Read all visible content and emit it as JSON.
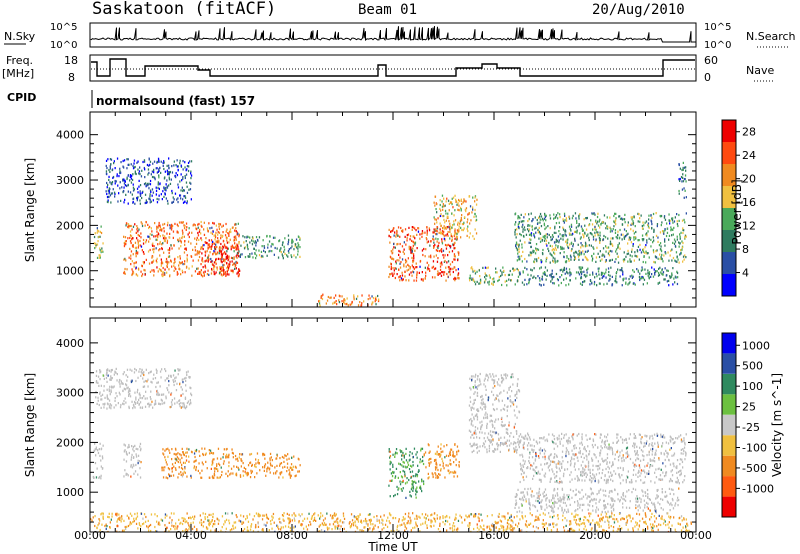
{
  "header": {
    "station": "Saskatoon (fitACF)",
    "beam": "Beam 01",
    "date": "20/Aug/2010"
  },
  "top_panels": {
    "nsky_label": "N.Sky",
    "nsky_ticks": [
      "10^5",
      "10^0"
    ],
    "nsearch_label": "N.Search",
    "nsearch_ticks": [
      "10^5",
      "10^0"
    ],
    "freq_label_1": "Freq.",
    "freq_label_2": "[MHz]",
    "freq_ticks": [
      "18",
      "8"
    ],
    "nave_label": "Nave",
    "nave_ticks": [
      "60",
      "0"
    ],
    "cpid_label": "CPID",
    "cpid_text": "normalsound (fast) 157"
  },
  "colors": {
    "power_scale": [
      "#0000ff",
      "#2a4fa5",
      "#2f7b5f",
      "#4aa95a",
      "#f0c040",
      "#f08a20",
      "#ff4a10",
      "#ee0000"
    ],
    "velocity_scale": [
      "#ee0000",
      "#ff5a10",
      "#f08a20",
      "#f0c040",
      "#c8c8c8",
      "#6cc040",
      "#2f8a5f",
      "#2a4fa5",
      "#0000ee"
    ],
    "ground_scatter": "#bebebe"
  },
  "chart_data": [
    {
      "type": "heatmap",
      "name": "power-panel",
      "xlabel": "",
      "ylabel": "Slant Range [km]",
      "yticks": [
        "1000",
        "2000",
        "3000",
        "4000"
      ],
      "ylim": [
        200,
        4500
      ],
      "xlim": [
        0,
        24
      ],
      "colorbar_label": "Power [dB]",
      "colorbar_ticks": [
        "4",
        "8",
        "12",
        "16",
        "20",
        "24",
        "28"
      ],
      "colorbar_range": [
        0,
        30
      ],
      "regions": [
        {
          "t": [
            0.1,
            0.5
          ],
          "r": [
            1300,
            2000
          ],
          "v": 14
        },
        {
          "t": [
            1.3,
            5.9
          ],
          "r": [
            900,
            2100
          ],
          "v": 22
        },
        {
          "t": [
            4.4,
            5.9
          ],
          "r": [
            900,
            1700
          ],
          "v": 27
        },
        {
          "t": [
            5.8,
            8.3
          ],
          "r": [
            1300,
            1800
          ],
          "v": 11
        },
        {
          "t": [
            0.6,
            4.0
          ],
          "r": [
            2500,
            3500
          ],
          "v": 6
        },
        {
          "t": [
            11.8,
            14.6
          ],
          "r": [
            800,
            2000
          ],
          "v": 24
        },
        {
          "t": [
            13.6,
            15.3
          ],
          "r": [
            1700,
            2700
          ],
          "v": 18
        },
        {
          "t": [
            15.0,
            17.0
          ],
          "r": [
            700,
            1100
          ],
          "v": 13
        },
        {
          "t": [
            16.8,
            23.6
          ],
          "r": [
            1200,
            2300
          ],
          "v": 12
        },
        {
          "t": [
            17.0,
            23.3
          ],
          "r": [
            700,
            1100
          ],
          "v": 10
        },
        {
          "t": [
            9.0,
            11.5
          ],
          "r": [
            250,
            500
          ],
          "v": 20
        },
        {
          "t": [
            23.3,
            23.6
          ],
          "r": [
            2600,
            3500
          ],
          "v": 8
        }
      ]
    },
    {
      "type": "heatmap",
      "name": "velocity-panel",
      "xlabel": "Time UT",
      "ylabel": "Slant Range [km]",
      "yticks": [
        "1000",
        "2000",
        "3000",
        "4000"
      ],
      "ylim": [
        200,
        4500
      ],
      "xlim": [
        0,
        24
      ],
      "xticks": [
        "00:00",
        "04:00",
        "08:00",
        "12:00",
        "16:00",
        "20:00",
        "00:00"
      ],
      "colorbar_label": "Velocity [m s^-1]",
      "colorbar_ticks": [
        "1000",
        "500",
        "100",
        "25",
        "-25",
        "-100",
        "-500",
        "-1000"
      ],
      "colorbar_range": [
        -1000,
        1000
      ],
      "regions": [
        {
          "t": [
            0.1,
            0.5
          ],
          "r": [
            1300,
            2000
          ],
          "v": 0
        },
        {
          "t": [
            1.3,
            2.0
          ],
          "r": [
            1300,
            2000
          ],
          "v": 0
        },
        {
          "t": [
            2.8,
            5.8
          ],
          "r": [
            1300,
            1900
          ],
          "v": -150
        },
        {
          "t": [
            5.8,
            8.3
          ],
          "r": [
            1300,
            1800
          ],
          "v": -150
        },
        {
          "t": [
            11.8,
            13.2
          ],
          "r": [
            900,
            1900
          ],
          "v": 120
        },
        {
          "t": [
            13.2,
            14.6
          ],
          "r": [
            1300,
            2000
          ],
          "v": -150
        },
        {
          "t": [
            15.0,
            17.0
          ],
          "r": [
            1800,
            3400
          ],
          "v": 0
        },
        {
          "t": [
            17.0,
            23.6
          ],
          "r": [
            1200,
            2200
          ],
          "v": 0
        },
        {
          "t": [
            16.8,
            23.3
          ],
          "r": [
            600,
            1100
          ],
          "v": 0
        },
        {
          "t": [
            0.0,
            23.8
          ],
          "r": [
            200,
            600
          ],
          "v": -80
        },
        {
          "t": [
            0.2,
            4.0
          ],
          "r": [
            2700,
            3500
          ],
          "v": 0
        }
      ]
    }
  ]
}
